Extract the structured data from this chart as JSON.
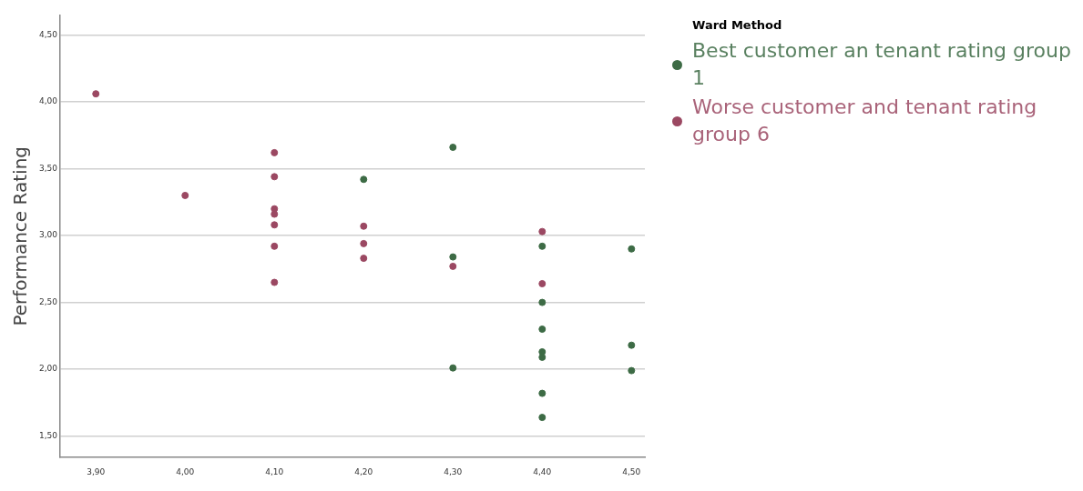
{
  "chart_data": {
    "type": "scatter",
    "ylabel": "Performance Rating",
    "legend_title": "Ward Method",
    "legend": "right",
    "grid": "y",
    "marker": "circle",
    "xlim": [
      3.86,
      4.515
    ],
    "ylim": [
      1.34,
      4.65
    ],
    "xticks": [
      {
        "value": 3.9,
        "label": "3,90"
      },
      {
        "value": 4.0,
        "label": "4,00"
      },
      {
        "value": 4.1,
        "label": "4,10"
      },
      {
        "value": 4.2,
        "label": "4,20"
      },
      {
        "value": 4.3,
        "label": "4,30"
      },
      {
        "value": 4.4,
        "label": "4,40"
      },
      {
        "value": 4.5,
        "label": "4,50"
      }
    ],
    "yticks": [
      {
        "value": 1.5,
        "label": "1,50"
      },
      {
        "value": 2.0,
        "label": "2,00"
      },
      {
        "value": 2.5,
        "label": "2,50"
      },
      {
        "value": 3.0,
        "label": "3,00"
      },
      {
        "value": 3.5,
        "label": "3,50"
      },
      {
        "value": 4.0,
        "label": "4,00"
      },
      {
        "value": 4.5,
        "label": "4,50"
      }
    ],
    "series": [
      {
        "name": "Best customer an tenant rating group 1",
        "color": "#3d6b45",
        "x": [
          4.2,
          4.3,
          4.3,
          4.3,
          4.4,
          4.4,
          4.4,
          4.4,
          4.4,
          4.4,
          4.4,
          4.5,
          4.5,
          4.5
        ],
        "values": [
          3.42,
          3.66,
          2.84,
          2.01,
          2.92,
          2.5,
          2.3,
          2.13,
          2.09,
          1.82,
          1.64,
          2.9,
          2.18,
          1.99
        ]
      },
      {
        "name": "Worse customer and tenant rating group 6",
        "color": "#9b4862",
        "x": [
          3.9,
          4.0,
          4.1,
          4.1,
          4.1,
          4.1,
          4.1,
          4.1,
          4.1,
          4.2,
          4.2,
          4.2,
          4.3,
          4.4,
          4.4
        ],
        "values": [
          4.06,
          3.3,
          3.62,
          3.44,
          3.2,
          3.16,
          3.08,
          2.92,
          2.65,
          3.07,
          2.94,
          2.83,
          2.77,
          3.03,
          2.64
        ]
      }
    ]
  }
}
